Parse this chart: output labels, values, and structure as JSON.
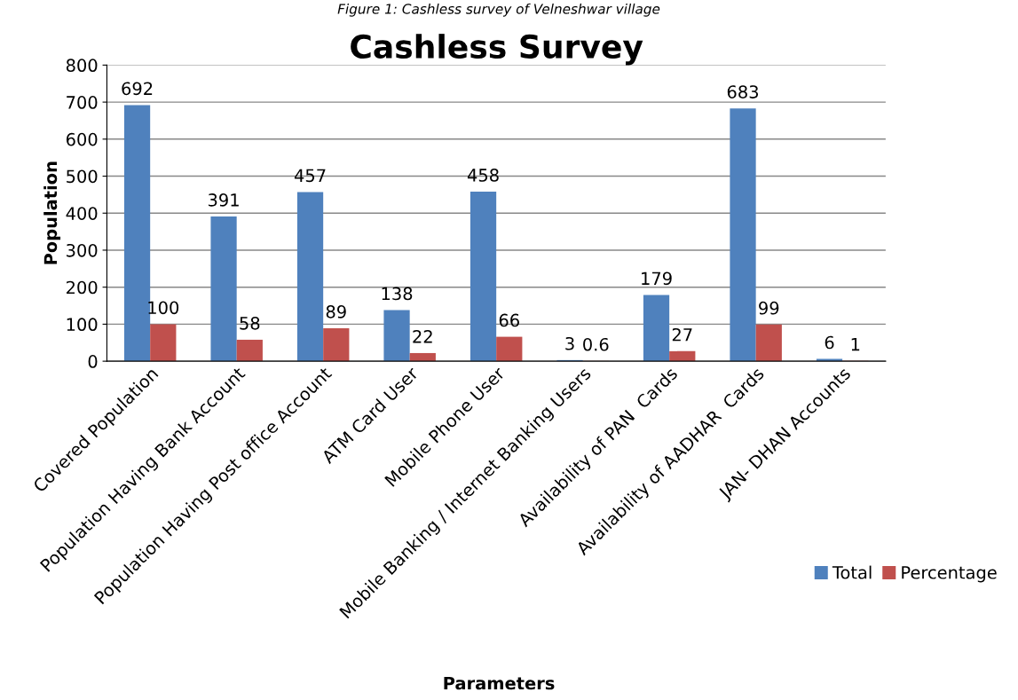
{
  "chart_data": {
    "type": "bar",
    "title": "Cashless Survey",
    "xlabel": "Parameters",
    "ylabel": "Population",
    "annotations": [
      "Figure 1: Cashless survey of Velneshwar village"
    ],
    "categories": [
      "Covered Population",
      "Population Having Bank Account",
      "Population Having Post office Account",
      "ATM Card User",
      "Mobile Phone User",
      "Mobile Banking / Internet Banking Users",
      "Availability of PAN  Cards",
      "Availability of AADHAR  Cards",
      "JAN- DHAN Accounts"
    ],
    "series": [
      {
        "name": "Total",
        "color": "#4f81bd",
        "values": [
          692,
          391,
          457,
          138,
          458,
          3,
          179,
          683,
          6
        ]
      },
      {
        "name": "Percentage",
        "color": "#c0504d",
        "values": [
          100,
          58,
          89,
          22,
          66,
          0.6,
          27,
          99,
          1
        ]
      }
    ],
    "ylim": [
      0,
      800
    ],
    "yticks": [
      0,
      100,
      200,
      300,
      400,
      500,
      600,
      700,
      800
    ],
    "grid": "y",
    "legend": "right",
    "data_labels": true
  }
}
